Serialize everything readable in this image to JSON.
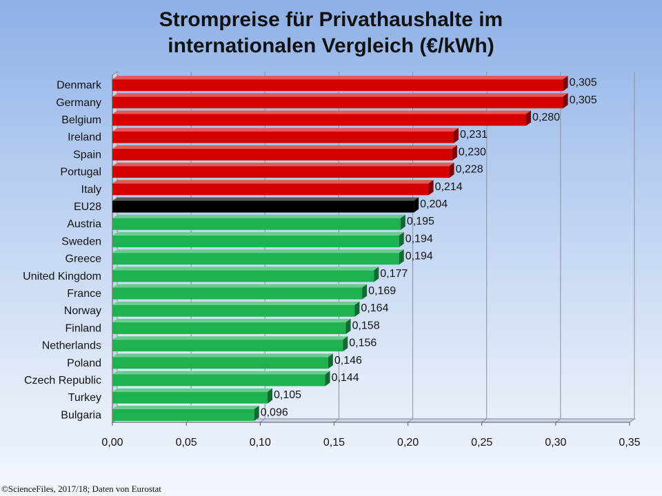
{
  "title_line1": "Strompreise für Privathaushalte im",
  "title_line2": "internationalen Vergleich (€/kWh)",
  "source": "©ScienceFiles, 2017/18; Daten von Eurostat",
  "colors": {
    "high": "#d40000",
    "eu": "#000000",
    "low": "#1db150"
  },
  "chart_data": {
    "type": "bar",
    "orientation": "horizontal",
    "title": "Strompreise für Privathaushalte im internationalen Vergleich (€/kWh)",
    "categories": [
      "Denmark",
      "Germany",
      "Belgium",
      "Ireland",
      "Spain",
      "Portugal",
      "Italy",
      "EU28",
      "Austria",
      "Sweden",
      "Greece",
      "United Kingdom",
      "France",
      "Norway",
      "Finland",
      "Netherlands",
      "Poland",
      "Czech Republic",
      "Turkey",
      "Bulgaria"
    ],
    "values": [
      0.305,
      0.305,
      0.28,
      0.231,
      0.23,
      0.228,
      0.214,
      0.204,
      0.195,
      0.194,
      0.194,
      0.177,
      0.169,
      0.164,
      0.158,
      0.156,
      0.146,
      0.144,
      0.105,
      0.096
    ],
    "value_labels": [
      "0,305",
      "0,305",
      "0,280",
      "0,231",
      "0,230",
      "0,228",
      "0,214",
      "0,204",
      "0,195",
      "0,194",
      "0,194",
      "0,177",
      "0,169",
      "0,164",
      "0,158",
      "0,156",
      "0,146",
      "0,144",
      "0,105",
      "0,096"
    ],
    "bar_colors": [
      "high",
      "high",
      "high",
      "high",
      "high",
      "high",
      "high",
      "eu",
      "low",
      "low",
      "low",
      "low",
      "low",
      "low",
      "low",
      "low",
      "low",
      "low",
      "low",
      "low"
    ],
    "xlim": [
      0,
      0.35
    ],
    "xticks": [
      0,
      0.05,
      0.1,
      0.15,
      0.2,
      0.25,
      0.3,
      0.35
    ],
    "xtick_labels": [
      "0,00",
      "0,05",
      "0,10",
      "0,15",
      "0,20",
      "0,25",
      "0,30",
      "0,35"
    ],
    "grid": true,
    "legend": "none"
  }
}
